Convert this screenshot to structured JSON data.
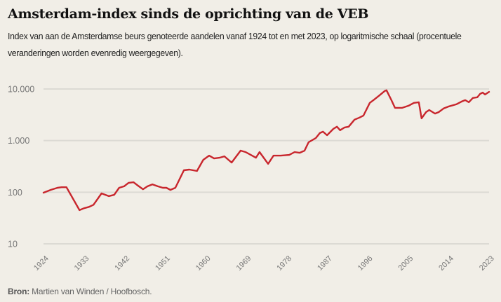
{
  "header": {
    "title": "Amsterdam-index sinds de oprichting van de VEB",
    "subtitle": "Index van aan de Amsterdamse beurs genoteerde aandelen vanaf 1924 tot en met 2023, op logaritmische schaal (procentuele veranderingen worden evenredig weergegeven)."
  },
  "footer": {
    "source_label": "Bron:",
    "source_text": " Martien van Winden / Hoofbosch."
  },
  "colors": {
    "background": "#f1eee7",
    "line": "#c8262d",
    "grid": "#dcdad4",
    "tick_text": "#777777"
  },
  "chart_data": {
    "type": "line",
    "title": "Amsterdam-index sinds de oprichting van de VEB",
    "xlabel": "",
    "ylabel": "",
    "yscale": "log",
    "ylim": [
      10,
      10000
    ],
    "xlim": [
      1924,
      2023
    ],
    "grid": true,
    "y_ticks": [
      {
        "value": 10000,
        "label": "10.000"
      },
      {
        "value": 1000,
        "label": "1.000"
      },
      {
        "value": 100,
        "label": "100"
      },
      {
        "value": 10,
        "label": "10"
      }
    ],
    "x_ticks": [
      "1924",
      "1933",
      "1942",
      "1951",
      "1960",
      "1969",
      "1978",
      "1987",
      "1996",
      "2005",
      "2014",
      "2023"
    ],
    "series": [
      {
        "name": "Amsterdam-index",
        "x": [
          1924,
          1925.6,
          1927.1,
          1928,
          1929.1,
          1932,
          1933,
          1934.1,
          1935.1,
          1936.9,
          1938.5,
          1939.7,
          1940.8,
          1941.9,
          1942.9,
          1944,
          1945,
          1946.1,
          1947.1,
          1948.2,
          1949.4,
          1950.5,
          1951.3,
          1952.2,
          1953.3,
          1955.2,
          1956.4,
          1958.1,
          1959.5,
          1960.8,
          1961.9,
          1963.1,
          1964.2,
          1965.8,
          1967.8,
          1968.9,
          1971.2,
          1972,
          1973.9,
          1975.1,
          1976.7,
          1978.6,
          1979.8,
          1980.9,
          1982,
          1982.9,
          1984.5,
          1985.4,
          1986.1,
          1987,
          1988.4,
          1989.2,
          1989.9,
          1990.9,
          1991.8,
          1993.1,
          1994.2,
          1995.1,
          1996.5,
          1997.3,
          1998.5,
          1999.8,
          2000.2,
          2001.3,
          2002.1,
          2003.7,
          2005.1,
          2006.3,
          2007.4,
          2008,
          2009,
          2009.7,
          2011,
          2011.8,
          2012.9,
          2014.1,
          2015.7,
          2016.9,
          2017.7,
          2018.5,
          2019.4,
          2020.4,
          2021,
          2021.6,
          2022.1,
          2023
        ],
        "values": [
          98,
          111,
          122,
          125,
          125,
          45,
          49,
          52,
          57,
          95,
          84,
          89,
          122,
          130,
          152,
          156,
          134,
          114,
          130,
          142,
          130,
          122,
          122,
          111,
          122,
          266,
          275,
          258,
          424,
          512,
          452,
          466,
          496,
          375,
          638,
          600,
          466,
          600,
          355,
          512,
          512,
          528,
          600,
          580,
          638,
          930,
          1120,
          1400,
          1490,
          1270,
          1690,
          1860,
          1590,
          1800,
          1860,
          2540,
          2790,
          3060,
          5380,
          6090,
          7370,
          9140,
          9440,
          6090,
          4320,
          4320,
          4740,
          5380,
          5540,
          2700,
          3570,
          3910,
          3340,
          3570,
          4190,
          4600,
          5050,
          5720,
          6090,
          5540,
          6710,
          6910,
          8030,
          8530,
          7800,
          8800
        ]
      }
    ]
  }
}
